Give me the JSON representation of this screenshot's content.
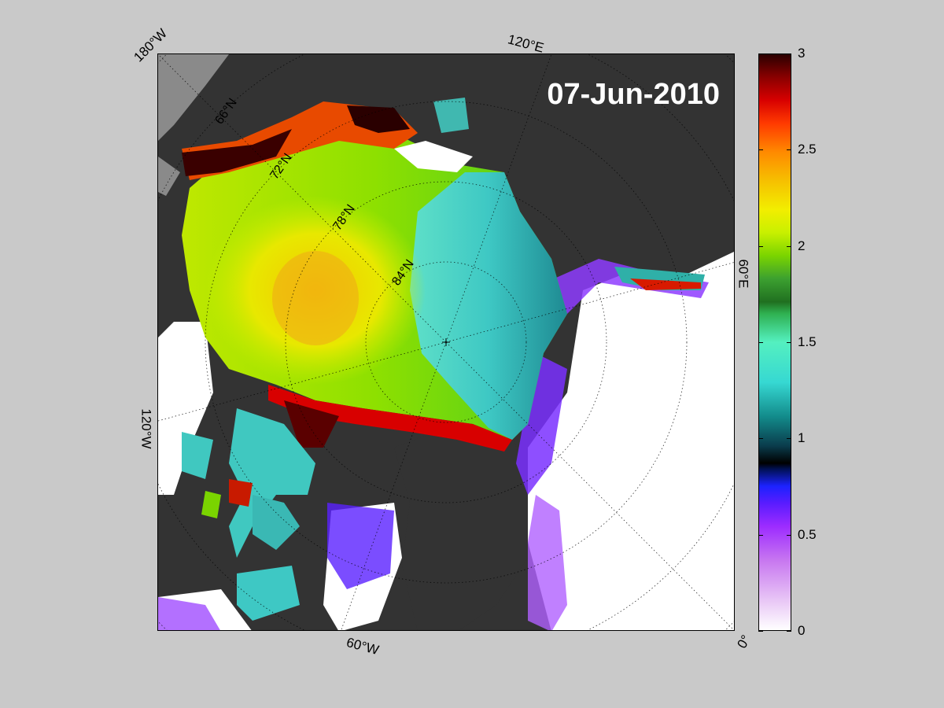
{
  "map": {
    "date": "07-Jun-2010",
    "lon_labels": {
      "w180": "180°W",
      "e120": "120°E",
      "e60": "60°E",
      "w120": "120°W",
      "w60": "60°W",
      "zero": "0°"
    },
    "lat_labels": {
      "n66": "66°N",
      "n72": "72°N",
      "n78": "78°N",
      "n84": "84°N"
    },
    "colors": {
      "land": "#333333",
      "land_light": "#8a8a8a",
      "background": "#c9c9c9",
      "open_water": "#ffffff"
    }
  },
  "colorbar": {
    "range": [
      0,
      3
    ],
    "ticks": [
      "0",
      "0.5",
      "1",
      "1.5",
      "2",
      "2.5",
      "3"
    ]
  }
}
